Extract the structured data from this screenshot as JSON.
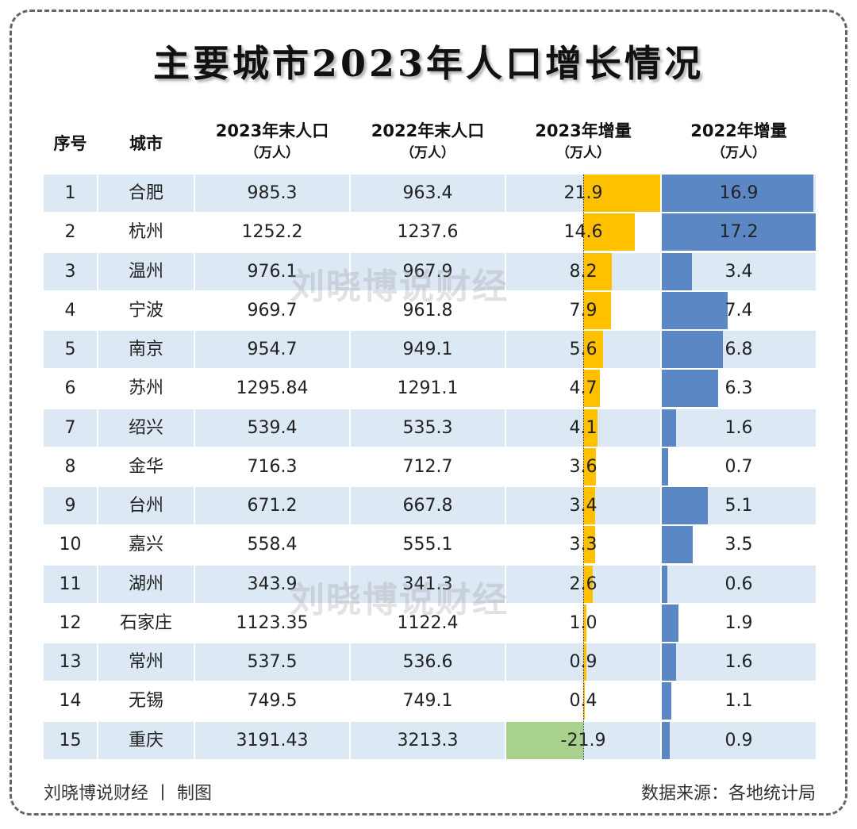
{
  "title": "主要城市2023年人口增长情况",
  "headers": [
    {
      "l1": "序号",
      "l2": ""
    },
    {
      "l1": "城市",
      "l2": ""
    },
    {
      "l1": "2023年末人口",
      "l2": "（万人）"
    },
    {
      "l1": "2022年末人口",
      "l2": "（万人）"
    },
    {
      "l1": "2023年增量",
      "l2": "（万人）"
    },
    {
      "l1": "2022年增量",
      "l2": "（万人）"
    }
  ],
  "colors": {
    "band": "#dce8f4",
    "bar_2023_pos": "#ffc000",
    "bar_2023_neg": "#a9d18e",
    "bar_2022": "#5b87c5"
  },
  "watermark": "刘晓博说财经",
  "footer": {
    "left": "刘晓博说财经 丨 制图",
    "right": "数据来源：各地统计局"
  },
  "chart_data": {
    "type": "table",
    "title": "主要城市2023年人口增长情况",
    "columns": [
      "序号",
      "城市",
      "2023年末人口（万人）",
      "2022年末人口（万人）",
      "2023年增量（万人）",
      "2022年增量（万人）"
    ],
    "rows": [
      [
        "1",
        "合肥",
        "985.3",
        "963.4",
        "21.9",
        "16.9"
      ],
      [
        "2",
        "杭州",
        "1252.2",
        "1237.6",
        "14.6",
        "17.2"
      ],
      [
        "3",
        "温州",
        "976.1",
        "967.9",
        "8.2",
        "3.4"
      ],
      [
        "4",
        "宁波",
        "969.7",
        "961.8",
        "7.9",
        "7.4"
      ],
      [
        "5",
        "南京",
        "954.7",
        "949.1",
        "5.6",
        "6.8"
      ],
      [
        "6",
        "苏州",
        "1295.84",
        "1291.1",
        "4.7",
        "6.3"
      ],
      [
        "7",
        "绍兴",
        "539.4",
        "535.3",
        "4.1",
        "1.6"
      ],
      [
        "8",
        "金华",
        "716.3",
        "712.7",
        "3.6",
        "0.7"
      ],
      [
        "9",
        "台州",
        "671.2",
        "667.8",
        "3.4",
        "5.1"
      ],
      [
        "10",
        "嘉兴",
        "558.4",
        "555.1",
        "3.3",
        "3.5"
      ],
      [
        "11",
        "湖州",
        "343.9",
        "341.3",
        "2.6",
        "0.6"
      ],
      [
        "12",
        "石家庄",
        "1123.35",
        "1122.4",
        "1.0",
        "1.9"
      ],
      [
        "13",
        "常州",
        "537.5",
        "536.6",
        "0.9",
        "1.6"
      ],
      [
        "14",
        "无锡",
        "749.5",
        "749.1",
        "0.4",
        "1.1"
      ],
      [
        "15",
        "重庆",
        "3191.43",
        "3213.3",
        "-21.9",
        "0.9"
      ]
    ]
  }
}
